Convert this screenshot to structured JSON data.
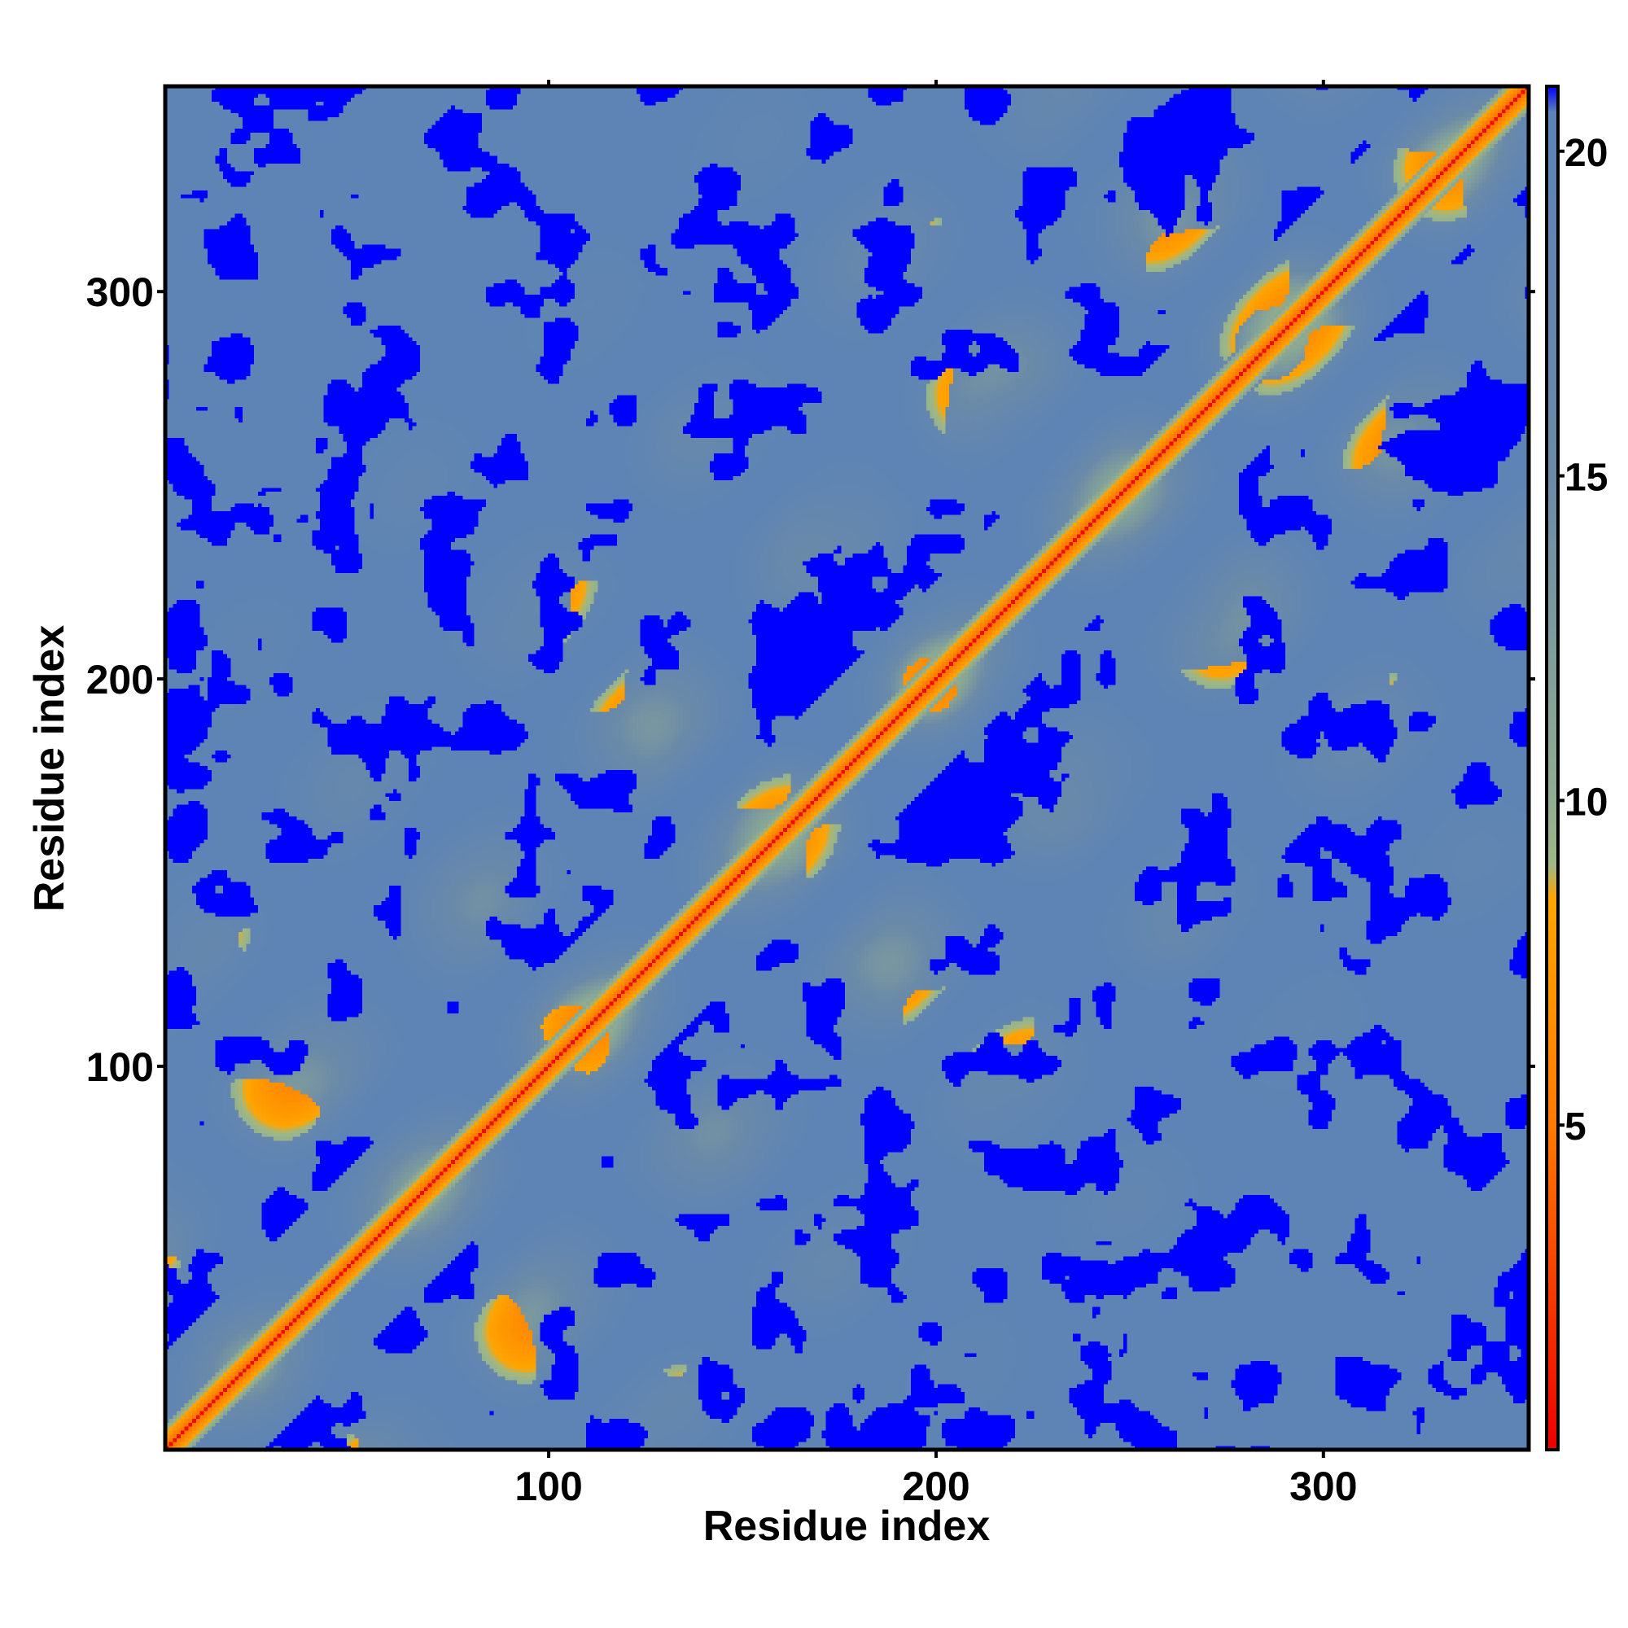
{
  "chart_data": {
    "type": "heatmap",
    "title": "",
    "xlabel": "Residue index",
    "ylabel": "Residue index",
    "xlim": [
      1,
      353
    ],
    "ylim": [
      1,
      353
    ],
    "x_ticks": [
      100,
      200,
      300
    ],
    "y_ticks": [
      100,
      200,
      300
    ],
    "colorbar": {
      "range": [
        0,
        21
      ],
      "ticks": [
        5,
        10,
        15,
        20
      ],
      "stops": [
        {
          "value": 0,
          "color": "#ee0000"
        },
        {
          "value": 5,
          "color": "#ff7a00"
        },
        {
          "value": 8.5,
          "color": "#ffa500"
        },
        {
          "value": 9,
          "color": "#9fb886"
        },
        {
          "value": 10,
          "color": "#90ad90"
        },
        {
          "value": 15,
          "color": "#6b8aa8"
        },
        {
          "value": 20.6,
          "color": "#5b83b7"
        },
        {
          "value": 21,
          "color": "#0000ff"
        }
      ]
    },
    "features": {
      "diagonal": "distance ~0 (red) along the main diagonal",
      "background_value": 20,
      "saturated_value": 21
    }
  }
}
